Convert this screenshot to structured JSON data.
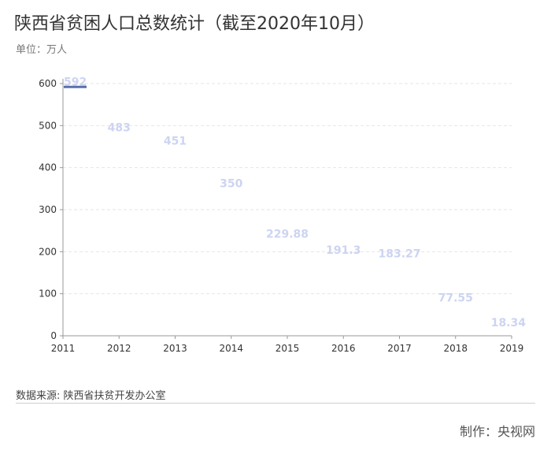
{
  "header": {
    "title": "陕西省贫困人口总数统计（截至2020年10月）",
    "unit": "单位：万人"
  },
  "footer": {
    "source": "数据来源: 陕西省扶贫开发办公室",
    "maker": "制作：央视网"
  },
  "colors": {
    "bar": "#5b6fa8",
    "data_label": "#cdd4f2",
    "axis": "#999999",
    "grid": "#e6e6e6"
  },
  "chart_data": {
    "type": "bar",
    "categories": [
      "2011",
      "2012",
      "2013",
      "2014",
      "2015",
      "2016",
      "2017",
      "2018",
      "2019"
    ],
    "values": [
      592,
      483,
      451,
      350,
      229.88,
      191.3,
      183.27,
      77.55,
      18.34
    ],
    "data_labels": [
      "592",
      "483",
      "451",
      "350",
      "229.88",
      "191.3",
      "183.27",
      "77.55",
      "18.34"
    ],
    "y_ticks": [
      "0",
      "100",
      "200",
      "300",
      "400",
      "500",
      "600"
    ],
    "ylim": [
      0,
      600
    ],
    "grid": true,
    "legend": "none"
  }
}
